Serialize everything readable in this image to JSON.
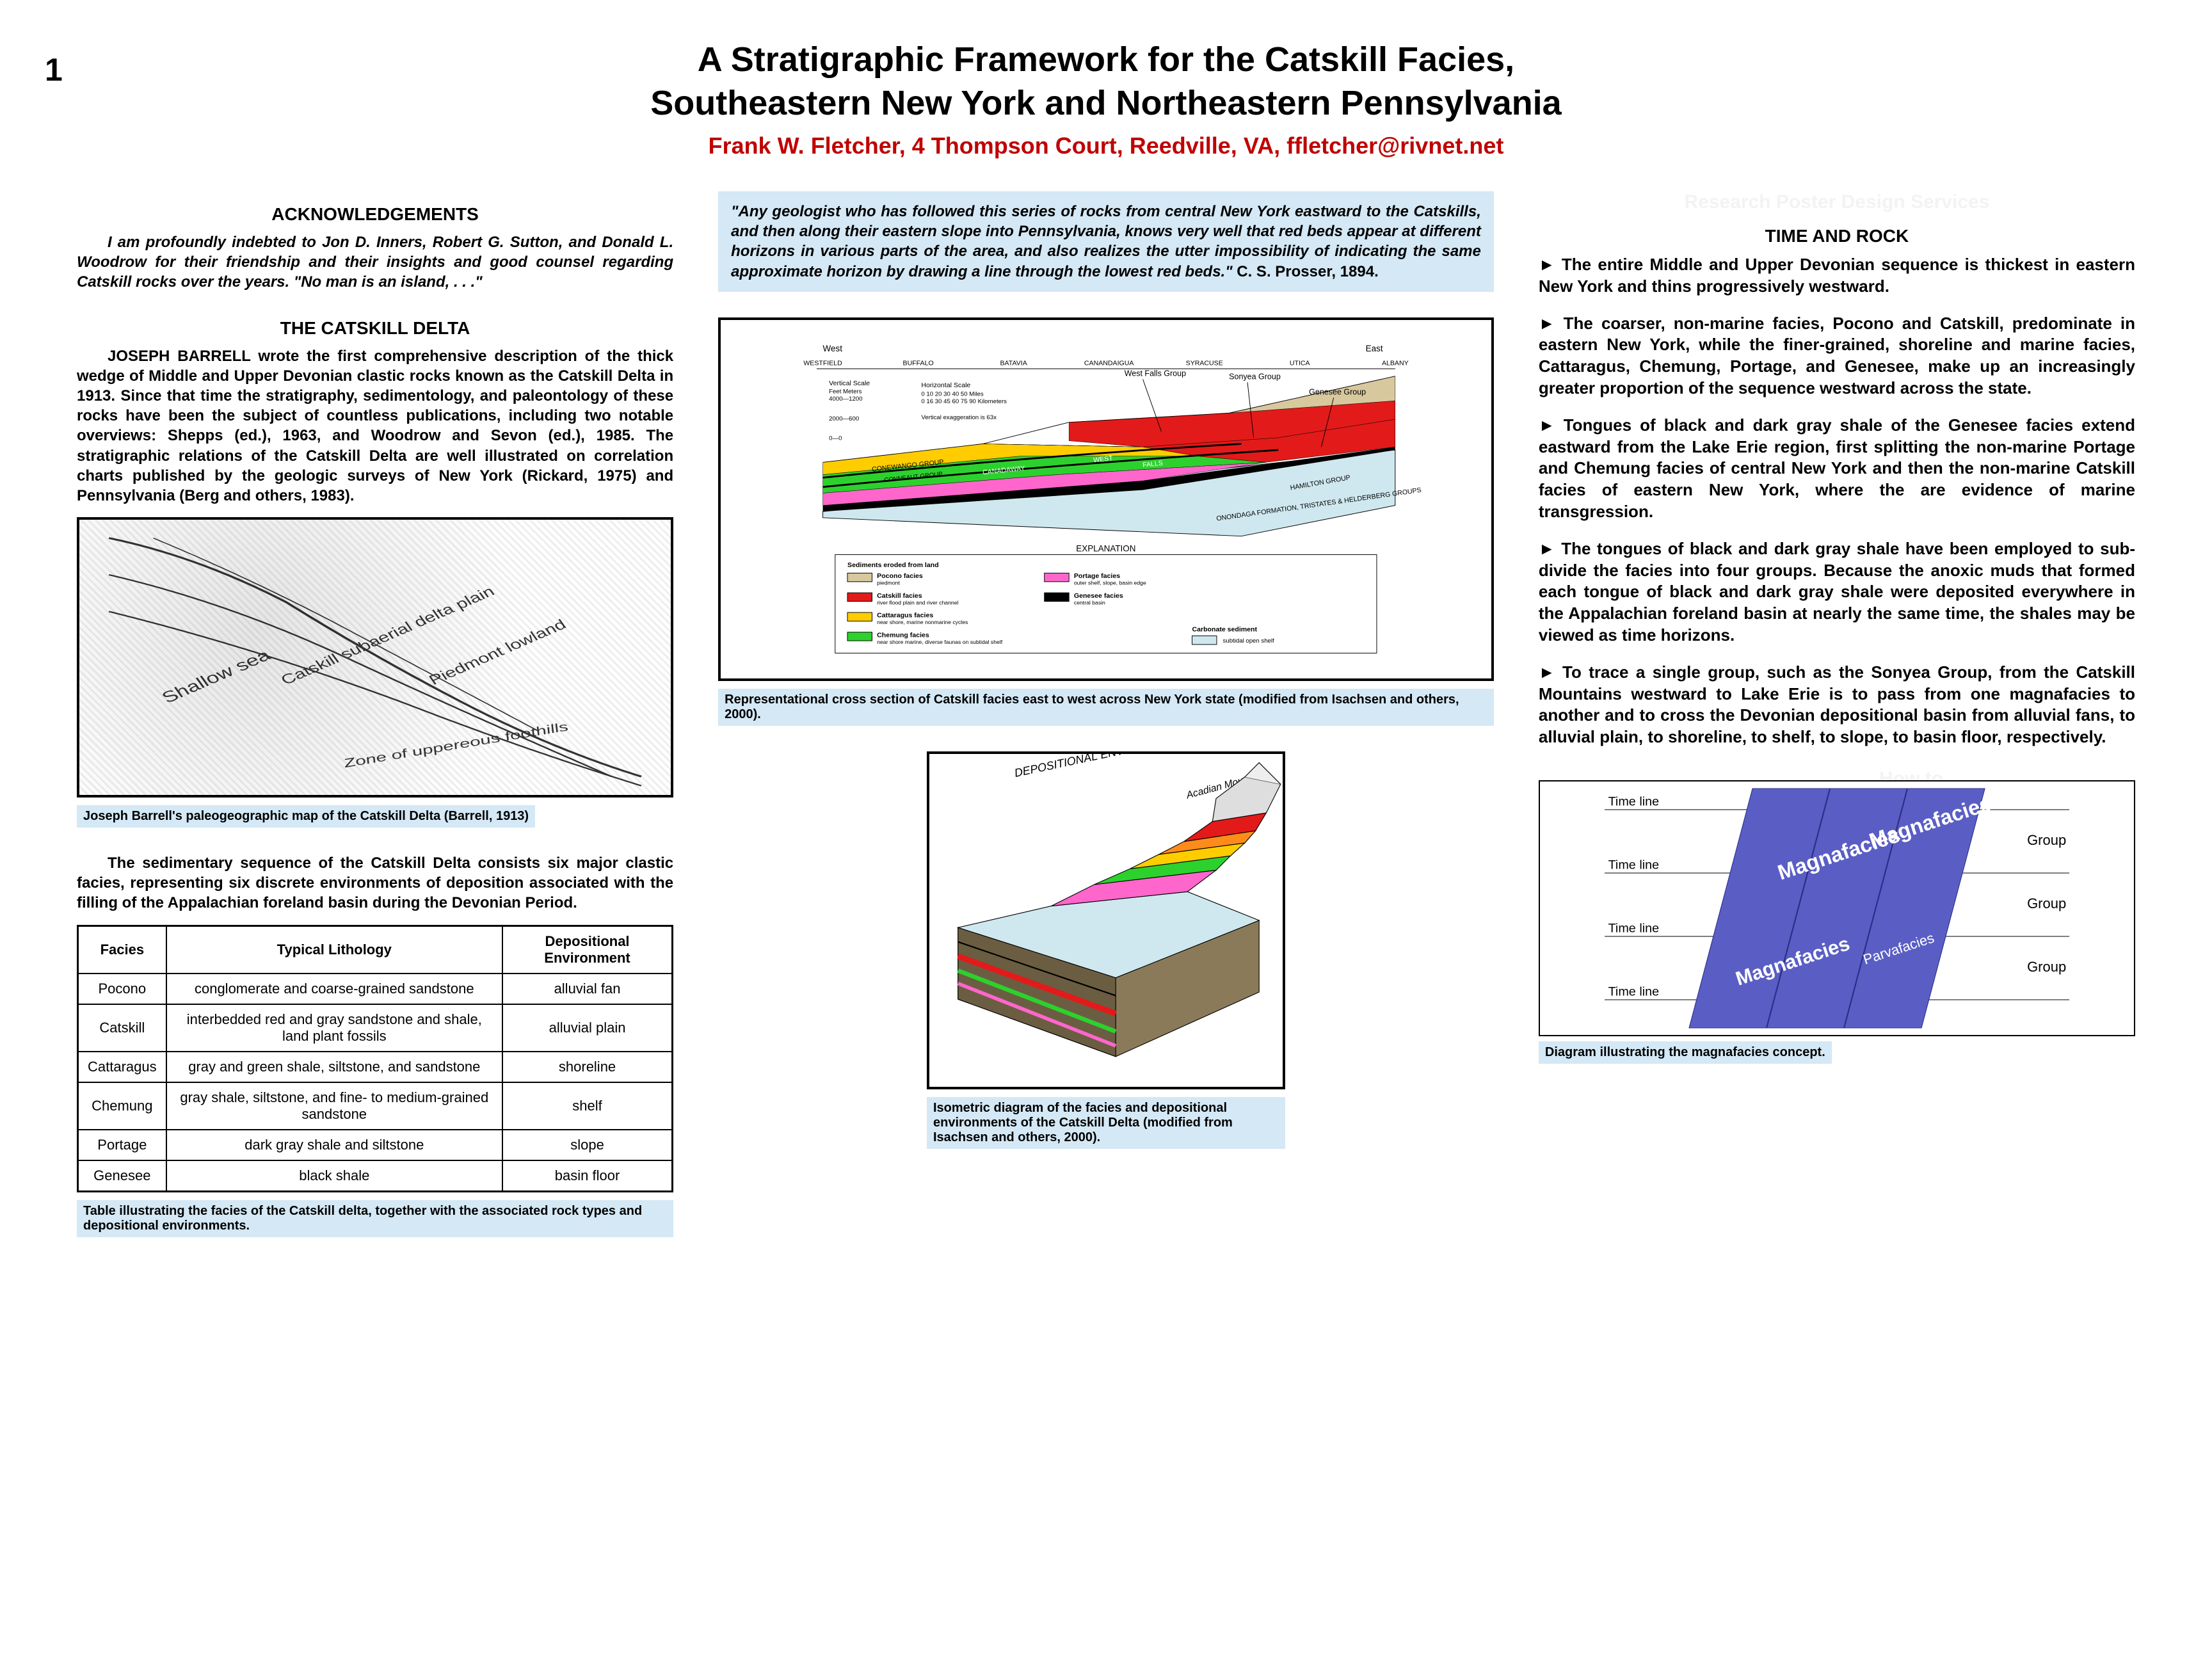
{
  "page_number": "1",
  "title_line1": "A Stratigraphic Framework for the Catskill Facies,",
  "title_line2": "Southeastern New York and Northeastern Pennsylvania",
  "author": "Frank W. Fletcher, 4 Thompson Court, Reedville, VA, ffletcher@rivnet.net",
  "colors": {
    "author": "#c00000",
    "caption_bg": "#d4e8f5",
    "magna_band": "#5a5ec4",
    "pocono": "#d8c89e",
    "catskill": "#e31a1a",
    "cattaragus": "#ffcc00",
    "chemung": "#2dd12d",
    "portage": "#ff66cc",
    "genesee": "#000000",
    "carbonate": "#cfe8ef"
  },
  "left": {
    "ack_heading": "ACKNOWLEDGEMENTS",
    "ack_text": "I am profoundly indebted to Jon D. Inners, Robert G. Sutton, and Donald L. Woodrow for their friendship and their insights and good counsel regarding Catskill rocks over the years. \"No man is an island, . . .\"",
    "delta_heading": "THE CATSKILL DELTA",
    "delta_para": "JOSEPH BARRELL wrote the first comprehensive description of the thick wedge of Middle and Upper Devonian clastic rocks known as the Catskill Delta in 1913. Since that time the stratigraphy, sedimentology, and paleontology of these rocks have been the subject of countless publications, including two notable overviews: Shepps (ed.), 1963, and Woodrow and Sevon (ed.), 1985. The stratigraphic relations of the Catskill Delta are well illustrated on correlation charts published by the geologic surveys of New York (Rickard, 1975) and Pennsylvania (Berg and others, 1983).",
    "paleomap_caption": "Joseph Barrell's paleogeographic map of the Catskill Delta (Barrell, 1913)",
    "seq_para": "The sedimentary sequence of the Catskill Delta consists six major clastic facies, representing six discrete environments of deposition associated with the filling of the Appalachian foreland basin during the Devonian Period.",
    "table_headers": [
      "Facies",
      "Typical Lithology",
      "Depositional Environment"
    ],
    "table_rows": [
      [
        "Pocono",
        "conglomerate and coarse-grained sandstone",
        "alluvial fan"
      ],
      [
        "Catskill",
        "interbedded red and gray sandstone and shale, land plant fossils",
        "alluvial plain"
      ],
      [
        "Cattaragus",
        "gray and green shale, siltstone, and sandstone",
        "shoreline"
      ],
      [
        "Chemung",
        "gray shale, siltstone, and fine- to medium-grained sandstone",
        "shelf"
      ],
      [
        "Portage",
        "dark gray shale and siltstone",
        "slope"
      ],
      [
        "Genesee",
        "black shale",
        "basin floor"
      ]
    ],
    "table_caption": "Table illustrating the facies of the Catskill delta, together with the associated rock types and depositional environments."
  },
  "mid": {
    "quote": "\"Any geologist who has followed this series of rocks from central New York eastward to the Catskills, and then along their eastern slope into Pennsylvania, knows very well that red beds appear at different horizons in various parts of the area, and also realizes the utter impossibility of indicating the same approximate horizon by drawing a line through the lowest red beds.\"",
    "quote_attr": " C. S. Prosser, 1894.",
    "crosssec": {
      "west": "West",
      "east": "East",
      "cities": [
        "WESTFIELD",
        "BUFFALO",
        "BATAVIA",
        "CANANDAIGUA",
        "SYRACUSE",
        "UTICA",
        "ALBANY"
      ],
      "vscale_label": "Vertical Scale",
      "vscale_units": "Feet   Meters",
      "vscale_ticks": [
        "4000—1200",
        "",
        "2000—600",
        "",
        "0—0"
      ],
      "hscale_label": "Horizontal Scale",
      "hscale_miles": "0   10   20   30   40   50 Miles",
      "hscale_km": "0  16 30 45 60 75 90 Kilometers",
      "vertex": "Vertical exaggeration is 63x",
      "callouts": [
        "West Falls Group",
        "Sonyea Group",
        "Genesee Group"
      ],
      "inside_labels": [
        "CONEWANGO GROUP",
        "CONNEAUT GROUP",
        "CANADAWAY",
        "WEST",
        "FALLS"
      ],
      "base_label": "ONONDAGA FORMATION, TRISTATES & HELDERBERG GROUPS",
      "hamilton": "HAMILTON GROUP",
      "explanation": "EXPLANATION",
      "legend_left_label": "Sediments eroded from land",
      "legend": [
        {
          "swatch": "#d8c89e",
          "label": "Pocono facies",
          "sub": "piedmont"
        },
        {
          "swatch": "#e31a1a",
          "label": "Catskill facies",
          "sub": "river flood plain and river channel"
        },
        {
          "swatch": "#ffcc00",
          "label": "Cattaragus facies",
          "sub": "near shore, marine nonmarine cycles"
        },
        {
          "swatch": "#2dd12d",
          "label": "Chemung facies",
          "sub": "near shore marine, diverse faunas on subtidal shelf"
        },
        {
          "swatch": "#ff66cc",
          "label": "Portage facies",
          "sub": "outer shelf, slope, basin edge"
        },
        {
          "swatch": "#000000",
          "label": "Genesee facies",
          "sub": "central basin"
        }
      ],
      "carbonate_label": "Carbonate sediment",
      "carbonate_sub": "subtidal open shelf"
    },
    "crosssec_caption": "Representational cross section of Catskill facies east to west across New York state (modified from Isachsen and others, 2000).",
    "iso_title": "DEPOSITIONAL ENVIRONMENTS",
    "iso_mtns": "Acadian Mountains",
    "iso_caption": "Isometric diagram of the facies and depositional environments of the Catskill Delta (modified from Isachsen and others, 2000)."
  },
  "right": {
    "wm1": "Research Poster Design Services",
    "wm2": "How to",
    "heading": "TIME AND ROCK",
    "bullets": [
      "The entire Middle and Upper Devonian sequence is thickest in eastern New York and thins progressively westward.",
      "The coarser, non-marine facies, Pocono and Catskill, predominate in eastern New York, while the finer-grained, shoreline and marine facies, Cattaragus, Chemung, Portage, and Genesee, make up an increasingly greater proportion of the sequence westward across the state.",
      "Tongues of black and dark gray shale of the Genesee facies extend eastward from the Lake Erie region, first splitting the non-marine Portage and Chemung facies of central New York and then the non-marine Catskill facies of eastern New York, where the are evidence of marine transgression.",
      "The tongues of black and dark gray shale have been employed to sub-divide the facies into four groups. Because the anoxic muds that formed each tongue of black and dark gray shale were deposited everywhere in the Appalachian foreland basin at nearly the same time, the shales may be viewed as time horizons.",
      "To trace a single group, such as the Sonyea Group, from the Catskill Mountains westward to Lake Erie is to pass from one magnafacies to another and to cross the Devonian depositional basin from alluvial fans, to alluvial plain, to shoreline, to shelf, to slope, to basin floor, respectively."
    ],
    "magna": {
      "timeline": "Time line",
      "group": "Group",
      "magnafacies": "Magnafacies",
      "parvafacies": "Parvafacies"
    },
    "magna_caption": "Diagram illustrating the magnafacies concept."
  }
}
